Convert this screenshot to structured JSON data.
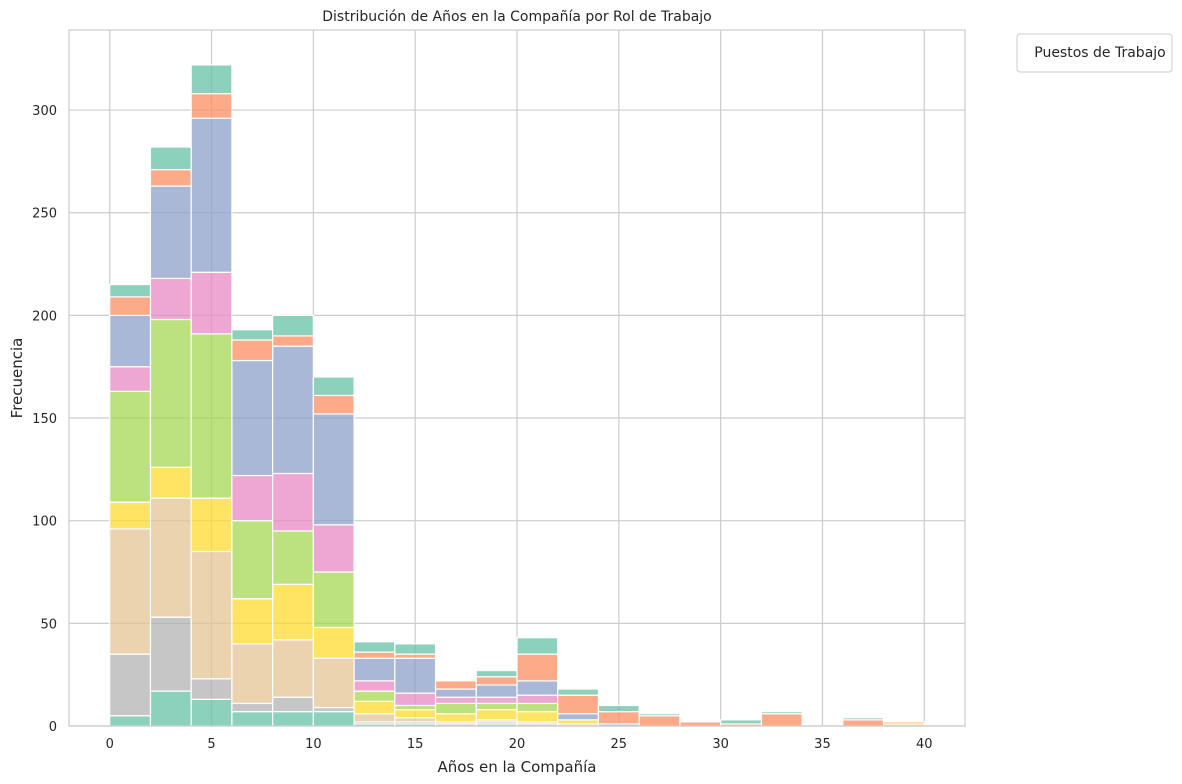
{
  "chart_data": {
    "type": "bar",
    "stacked": true,
    "title": "Distribución de Años en la Compañía por Rol de Trabajo",
    "xlabel": "Años en la Compañía",
    "ylabel": "Frecuencia",
    "xlim": [
      -2,
      42
    ],
    "ylim": [
      0,
      339
    ],
    "xticks": [
      0,
      5,
      10,
      15,
      20,
      25,
      30,
      35,
      40
    ],
    "yticks": [
      0,
      50,
      100,
      150,
      200,
      250,
      300
    ],
    "grid": true,
    "legend": {
      "title": "Puestos de Trabajo",
      "position": "upper-left-outside",
      "entries": []
    },
    "bin_edges": [
      0,
      2,
      4,
      6,
      8,
      10,
      12,
      14,
      16,
      18,
      20,
      22,
      24,
      26,
      28,
      30,
      32,
      34,
      36,
      38,
      40
    ],
    "series": [
      {
        "color": "#66c2a5",
        "values": [
          5,
          17,
          13,
          7,
          7,
          7,
          1,
          1,
          0,
          1,
          0,
          0,
          0,
          0,
          0,
          0,
          0,
          0,
          0,
          0
        ]
      },
      {
        "color": "#b3b3b3",
        "values": [
          30,
          36,
          10,
          4,
          7,
          2,
          1,
          1,
          1,
          1,
          1,
          0,
          0,
          0,
          0,
          0,
          0,
          0,
          0,
          0
        ]
      },
      {
        "color": "#e5c494",
        "values": [
          61,
          58,
          62,
          29,
          28,
          24,
          4,
          2,
          1,
          1,
          1,
          1,
          0,
          0,
          0,
          0,
          0,
          0,
          0,
          0
        ]
      },
      {
        "color": "#ffd92f",
        "values": [
          13,
          15,
          26,
          22,
          27,
          15,
          6,
          4,
          4,
          5,
          5,
          2,
          0,
          0,
          0,
          0,
          0,
          0,
          0,
          1
        ]
      },
      {
        "color": "#a6d854",
        "values": [
          54,
          72,
          80,
          38,
          26,
          27,
          5,
          2,
          5,
          3,
          4,
          0,
          0,
          0,
          0,
          0,
          0,
          0,
          0,
          0
        ]
      },
      {
        "color": "#e78ac3",
        "values": [
          12,
          20,
          30,
          22,
          28,
          23,
          5,
          6,
          3,
          3,
          4,
          0,
          0,
          0,
          0,
          0,
          0,
          0,
          0,
          0
        ]
      },
      {
        "color": "#8da0cb",
        "values": [
          25,
          45,
          75,
          56,
          62,
          54,
          11,
          17,
          4,
          6,
          7,
          3,
          1,
          0,
          0,
          0,
          0,
          0,
          0,
          0
        ]
      },
      {
        "color": "#fc8d62",
        "values": [
          9,
          8,
          12,
          10,
          5,
          9,
          3,
          2,
          4,
          4,
          13,
          9,
          6,
          5,
          2,
          1,
          6,
          0,
          3,
          1
        ]
      },
      {
        "color": "#66c2a5",
        "values": [
          6,
          11,
          14,
          5,
          10,
          9,
          5,
          5,
          0,
          3,
          8,
          3,
          3,
          1,
          0,
          2,
          1,
          0,
          1,
          0
        ]
      }
    ]
  }
}
